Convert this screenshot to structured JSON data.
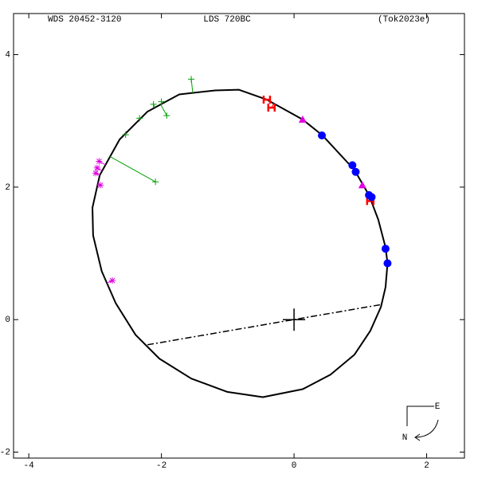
{
  "chart_data": {
    "type": "orbit",
    "title_left": "WDS 20452-3120",
    "title_center": "LDS 720BC",
    "title_right": "(Tok2023e)",
    "xlim": [
      -4.23,
      2.57
    ],
    "ylim": [
      -2.09,
      4.62
    ],
    "xticks": [
      -4,
      -2,
      0,
      2
    ],
    "yticks": [
      4,
      2,
      0,
      -2
    ],
    "orbit": {
      "color": "#000000",
      "x": [
        -1.19,
        -0.83,
        -0.41,
        0.13,
        0.43,
        0.91,
        1.13,
        1.27,
        1.38,
        1.41,
        1.38,
        1.31,
        1.15,
        0.91,
        0.55,
        0.13,
        -0.47,
        -1.01,
        -1.55,
        -2.03,
        -2.39,
        -2.69,
        -2.9,
        -3.03,
        -3.04,
        -2.93,
        -2.63,
        -2.21,
        -1.73
      ],
      "y": [
        3.46,
        3.47,
        3.32,
        3.02,
        2.78,
        2.26,
        1.88,
        1.51,
        1.09,
        0.85,
        0.49,
        0.19,
        -0.17,
        -0.53,
        -0.83,
        -1.05,
        -1.17,
        -1.09,
        -0.89,
        -0.59,
        -0.23,
        0.25,
        0.73,
        1.27,
        1.69,
        2.18,
        2.72,
        3.14,
        3.4
      ]
    },
    "line_of_nodes": {
      "x": [
        -2.21,
        1.33
      ],
      "y": [
        -0.38,
        0.23
      ]
    },
    "primary": {
      "x": 0,
      "y": 0
    },
    "series": [
      {
        "marker": "plus",
        "color": "#00a000",
        "x": [
          -1.55,
          -2.12,
          -2.0,
          -1.92,
          -2.33,
          -2.54,
          -2.09
        ],
        "y": [
          3.63,
          3.25,
          3.29,
          3.08,
          3.04,
          2.79,
          2.08
        ]
      },
      {
        "marker": "asterisk",
        "color": "#e000e0",
        "x": [
          -2.94,
          -2.97,
          -2.99,
          -2.92,
          -2.74
        ],
        "y": [
          2.39,
          2.29,
          2.21,
          2.03,
          0.59
        ]
      },
      {
        "marker": "triangle",
        "color": "#e000e0",
        "x": [
          0.13,
          1.03
        ],
        "y": [
          3.02,
          2.03
        ]
      },
      {
        "marker": "H",
        "color": "#ff0000",
        "x": [
          -0.41,
          -0.34,
          1.15
        ],
        "y": [
          3.32,
          3.2,
          1.79
        ]
      },
      {
        "marker": "dot",
        "color": "#0000ff",
        "x": [
          0.42,
          0.88,
          0.93,
          1.13,
          1.17,
          1.38,
          1.41
        ],
        "y": [
          2.78,
          2.33,
          2.23,
          1.88,
          1.85,
          1.07,
          0.85
        ]
      }
    ],
    "compass": {
      "east": "E",
      "north": "N"
    }
  }
}
